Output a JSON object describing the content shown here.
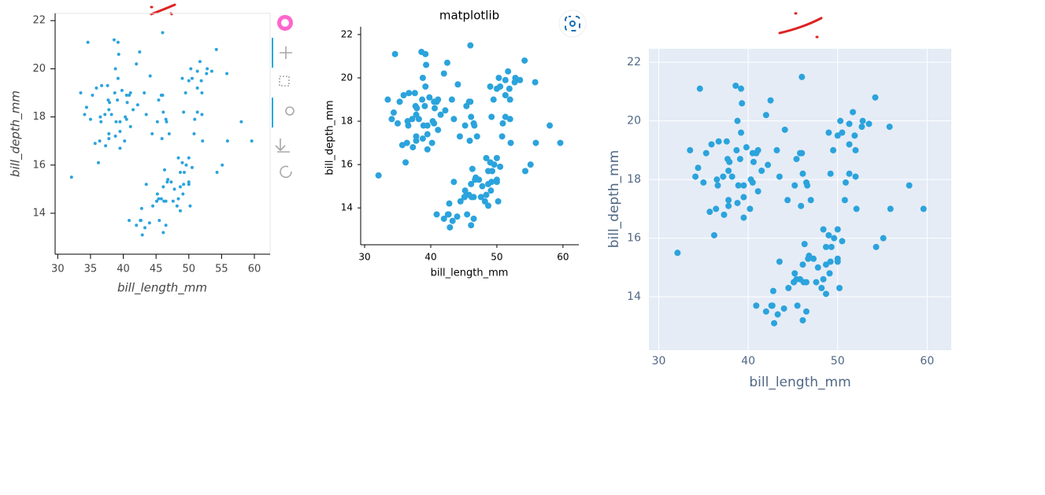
{
  "chart_data": [
    {
      "type": "scatter",
      "xlabel": "bill_length_mm",
      "ylabel": "bill_depth_mm",
      "color": "#2ba3dc",
      "grid": false,
      "xlim": [
        29.6,
        62.4
      ],
      "ylim": [
        12.3,
        22.3
      ],
      "xticks": [
        30,
        35,
        40,
        45,
        50,
        55,
        60
      ],
      "yticks": [
        14,
        16,
        18,
        20,
        22
      ],
      "x": [
        39.1,
        39.5,
        40.3,
        36.7,
        39.3,
        38.9,
        39.2,
        34.1,
        42,
        37.8,
        37.8,
        41.1,
        38.6,
        34.6,
        36.6,
        38.7,
        42.5,
        34.4,
        46,
        37.8,
        37.7,
        35.9,
        38.2,
        38.8,
        35.3,
        40.6,
        40.5,
        37.9,
        40.5,
        39.5,
        37.2,
        39.5,
        40.9,
        36.4,
        39.2,
        38.8,
        42.2,
        37.6,
        39.8,
        36.5,
        33.5,
        32.1,
        35,
        41.1,
        43.2,
        45.8,
        44.1,
        35.7,
        37.3,
        40.2,
        41.5,
        36.2,
        46.1,
        50,
        48.7,
        50,
        47.6,
        46.5,
        45.4,
        46.7,
        43.3,
        46.8,
        40.9,
        49,
        45.5,
        48.4,
        45.8,
        49.3,
        42,
        49.2,
        46.2,
        48.7,
        50.2,
        45.1,
        46.5,
        46.3,
        42.9,
        46.1,
        44.5,
        47.8,
        48.2,
        50,
        47.3,
        42.8,
        45.1,
        59.6,
        49.1,
        48.4,
        42.6,
        44.4,
        44,
        48.7,
        42.7,
        49.6,
        50.5,
        43.5,
        50.8,
        52.1,
        45.2,
        55.1,
        54.3,
        55.9,
        46.5,
        50,
        51.3,
        45.4,
        52.7,
        45.2,
        46.1,
        51.3,
        46,
        51.3,
        46.6,
        51.7,
        47,
        52,
        45.9,
        50.5,
        50.3,
        58,
        54.2,
        49.2,
        53.5,
        52.8,
        51.9,
        49.5,
        50.9,
        52,
        55.8,
        43.5,
        49
      ],
      "y": [
        18.7,
        17.4,
        18,
        19.3,
        20.6,
        17.8,
        19.6,
        18.1,
        20.2,
        17.1,
        17.3,
        17.6,
        21.2,
        21.1,
        17.8,
        19,
        20.7,
        18.4,
        21.5,
        18.3,
        18.7,
        19.2,
        18.1,
        17.2,
        18.9,
        18.6,
        17.9,
        18.6,
        18.9,
        16.7,
        18.1,
        17.8,
        18.9,
        17,
        21.1,
        20,
        18.5,
        19.3,
        19.1,
        18,
        19,
        15.5,
        17.9,
        19,
        19,
        18.9,
        19.7,
        16.9,
        16.8,
        17,
        18.3,
        16.1,
        13.2,
        16.3,
        14.1,
        15.2,
        14.5,
        13.5,
        14.6,
        15.3,
        13.4,
        15.4,
        13.7,
        16.1,
        13.7,
        14.6,
        14.6,
        15.7,
        13.5,
        15.2,
        14.5,
        15.1,
        14.3,
        14.5,
        14.5,
        15.8,
        13.1,
        15.1,
        14.3,
        15,
        14.3,
        15.3,
        15.3,
        14.2,
        14.5,
        17,
        14.8,
        16.3,
        13.7,
        17.3,
        13.6,
        15.7,
        13.7,
        16,
        15.9,
        15.2,
        17.3,
        17,
        14.8,
        16,
        15.7,
        17,
        17.9,
        19.5,
        19.2,
        18.7,
        19.8,
        17.8,
        18.2,
        18.2,
        18.9,
        19.9,
        17.8,
        20.3,
        17.3,
        18.1,
        17.1,
        19.6,
        20,
        17.8,
        20.8,
        18.2,
        19.9,
        20,
        19.5,
        19,
        17.9,
        19,
        19.8,
        18.1,
        19.6
      ]
    },
    {
      "type": "scatter",
      "title": "matplotlib",
      "xlabel": "bill_length_mm",
      "ylabel": "bill_depth_mm",
      "color": "#2ba3dc",
      "grid": false,
      "xlim": [
        29.4,
        62.4
      ],
      "ylim": [
        12.3,
        22.36
      ],
      "xticks": [
        30,
        40,
        50,
        60
      ],
      "yticks": [
        14,
        16,
        18,
        20,
        22
      ],
      "x": [
        39.1,
        39.5,
        40.3,
        36.7,
        39.3,
        38.9,
        39.2,
        34.1,
        42,
        37.8,
        37.8,
        41.1,
        38.6,
        34.6,
        36.6,
        38.7,
        42.5,
        34.4,
        46,
        37.8,
        37.7,
        35.9,
        38.2,
        38.8,
        35.3,
        40.6,
        40.5,
        37.9,
        40.5,
        39.5,
        37.2,
        39.5,
        40.9,
        36.4,
        39.2,
        38.8,
        42.2,
        37.6,
        39.8,
        36.5,
        33.5,
        32.1,
        35,
        41.1,
        43.2,
        45.8,
        44.1,
        35.7,
        37.3,
        40.2,
        41.5,
        36.2,
        46.1,
        50,
        48.7,
        50,
        47.6,
        46.5,
        45.4,
        46.7,
        43.3,
        46.8,
        40.9,
        49,
        45.5,
        48.4,
        45.8,
        49.3,
        42,
        49.2,
        46.2,
        48.7,
        50.2,
        45.1,
        46.5,
        46.3,
        42.9,
        46.1,
        44.5,
        47.8,
        48.2,
        50,
        47.3,
        42.8,
        45.1,
        59.6,
        49.1,
        48.4,
        42.6,
        44.4,
        44,
        48.7,
        42.7,
        49.6,
        50.5,
        43.5,
        50.8,
        52.1,
        45.2,
        55.1,
        54.3,
        55.9,
        46.5,
        50,
        51.3,
        45.4,
        52.7,
        45.2,
        46.1,
        51.3,
        46,
        51.3,
        46.6,
        51.7,
        47,
        52,
        45.9,
        50.5,
        50.3,
        58,
        54.2,
        49.2,
        53.5,
        52.8,
        51.9,
        49.5,
        50.9,
        52,
        55.8,
        43.5,
        49
      ],
      "y": [
        18.7,
        17.4,
        18,
        19.3,
        20.6,
        17.8,
        19.6,
        18.1,
        20.2,
        17.1,
        17.3,
        17.6,
        21.2,
        21.1,
        17.8,
        19,
        20.7,
        18.4,
        21.5,
        18.3,
        18.7,
        19.2,
        18.1,
        17.2,
        18.9,
        18.6,
        17.9,
        18.6,
        18.9,
        16.7,
        18.1,
        17.8,
        18.9,
        17,
        21.1,
        20,
        18.5,
        19.3,
        19.1,
        18,
        19,
        15.5,
        17.9,
        19,
        19,
        18.9,
        19.7,
        16.9,
        16.8,
        17,
        18.3,
        16.1,
        13.2,
        16.3,
        14.1,
        15.2,
        14.5,
        13.5,
        14.6,
        15.3,
        13.4,
        15.4,
        13.7,
        16.1,
        13.7,
        14.6,
        14.6,
        15.7,
        13.5,
        15.2,
        14.5,
        15.1,
        14.3,
        14.5,
        14.5,
        15.8,
        13.1,
        15.1,
        14.3,
        15,
        14.3,
        15.3,
        15.3,
        14.2,
        14.5,
        17,
        14.8,
        16.3,
        13.7,
        17.3,
        13.6,
        15.7,
        13.7,
        16,
        15.9,
        15.2,
        17.3,
        17,
        14.8,
        16,
        15.7,
        17,
        17.9,
        19.5,
        19.2,
        18.7,
        19.8,
        17.8,
        18.2,
        18.2,
        18.9,
        19.9,
        17.8,
        20.3,
        17.3,
        18.1,
        17.1,
        19.6,
        20,
        17.8,
        20.8,
        18.2,
        19.9,
        20,
        19.5,
        19,
        17.9,
        19,
        19.8,
        18.1,
        19.6
      ]
    },
    {
      "type": "scatter",
      "xlabel": "bill_length_mm",
      "ylabel": "bill_depth_mm",
      "color": "#2ba3dc",
      "grid": true,
      "xlim": [
        28.9,
        62.7
      ],
      "ylim": [
        12.18,
        22.46
      ],
      "xticks": [
        30,
        40,
        50,
        60
      ],
      "yticks": [
        14,
        16,
        18,
        20,
        22
      ],
      "x": [
        39.1,
        39.5,
        40.3,
        36.7,
        39.3,
        38.9,
        39.2,
        34.1,
        42,
        37.8,
        37.8,
        41.1,
        38.6,
        34.6,
        36.6,
        38.7,
        42.5,
        34.4,
        46,
        37.8,
        37.7,
        35.9,
        38.2,
        38.8,
        35.3,
        40.6,
        40.5,
        37.9,
        40.5,
        39.5,
        37.2,
        39.5,
        40.9,
        36.4,
        39.2,
        38.8,
        42.2,
        37.6,
        39.8,
        36.5,
        33.5,
        32.1,
        35,
        41.1,
        43.2,
        45.8,
        44.1,
        35.7,
        37.3,
        40.2,
        41.5,
        36.2,
        46.1,
        50,
        48.7,
        50,
        47.6,
        46.5,
        45.4,
        46.7,
        43.3,
        46.8,
        40.9,
        49,
        45.5,
        48.4,
        45.8,
        49.3,
        42,
        49.2,
        46.2,
        48.7,
        50.2,
        45.1,
        46.5,
        46.3,
        42.9,
        46.1,
        44.5,
        47.8,
        48.2,
        50,
        47.3,
        42.8,
        45.1,
        59.6,
        49.1,
        48.4,
        42.6,
        44.4,
        44,
        48.7,
        42.7,
        49.6,
        50.5,
        43.5,
        50.8,
        52.1,
        45.2,
        55.1,
        54.3,
        55.9,
        46.5,
        50,
        51.3,
        45.4,
        52.7,
        45.2,
        46.1,
        51.3,
        46,
        51.3,
        46.6,
        51.7,
        47,
        52,
        45.9,
        50.5,
        50.3,
        58,
        54.2,
        49.2,
        53.5,
        52.8,
        51.9,
        49.5,
        50.9,
        52,
        55.8,
        43.5,
        49
      ],
      "y": [
        18.7,
        17.4,
        18,
        19.3,
        20.6,
        17.8,
        19.6,
        18.1,
        20.2,
        17.1,
        17.3,
        17.6,
        21.2,
        21.1,
        17.8,
        19,
        20.7,
        18.4,
        21.5,
        18.3,
        18.7,
        19.2,
        18.1,
        17.2,
        18.9,
        18.6,
        17.9,
        18.6,
        18.9,
        16.7,
        18.1,
        17.8,
        18.9,
        17,
        21.1,
        20,
        18.5,
        19.3,
        19.1,
        18,
        19,
        15.5,
        17.9,
        19,
        19,
        18.9,
        19.7,
        16.9,
        16.8,
        17,
        18.3,
        16.1,
        13.2,
        16.3,
        14.1,
        15.2,
        14.5,
        13.5,
        14.6,
        15.3,
        13.4,
        15.4,
        13.7,
        16.1,
        13.7,
        14.6,
        14.6,
        15.7,
        13.5,
        15.2,
        14.5,
        15.1,
        14.3,
        14.5,
        14.5,
        15.8,
        13.1,
        15.1,
        14.3,
        15,
        14.3,
        15.3,
        15.3,
        14.2,
        14.5,
        17,
        14.8,
        16.3,
        13.7,
        17.3,
        13.6,
        15.7,
        13.7,
        16,
        15.9,
        15.2,
        17.3,
        17,
        14.8,
        16,
        15.7,
        17,
        17.9,
        19.5,
        19.2,
        18.7,
        19.8,
        17.8,
        18.2,
        18.2,
        18.9,
        19.9,
        17.8,
        20.3,
        17.3,
        18.1,
        17.1,
        19.6,
        20,
        17.8,
        20.8,
        18.2,
        19.9,
        20,
        19.5,
        19,
        17.9,
        19,
        19.8,
        18.1,
        19.6
      ]
    }
  ]
}
